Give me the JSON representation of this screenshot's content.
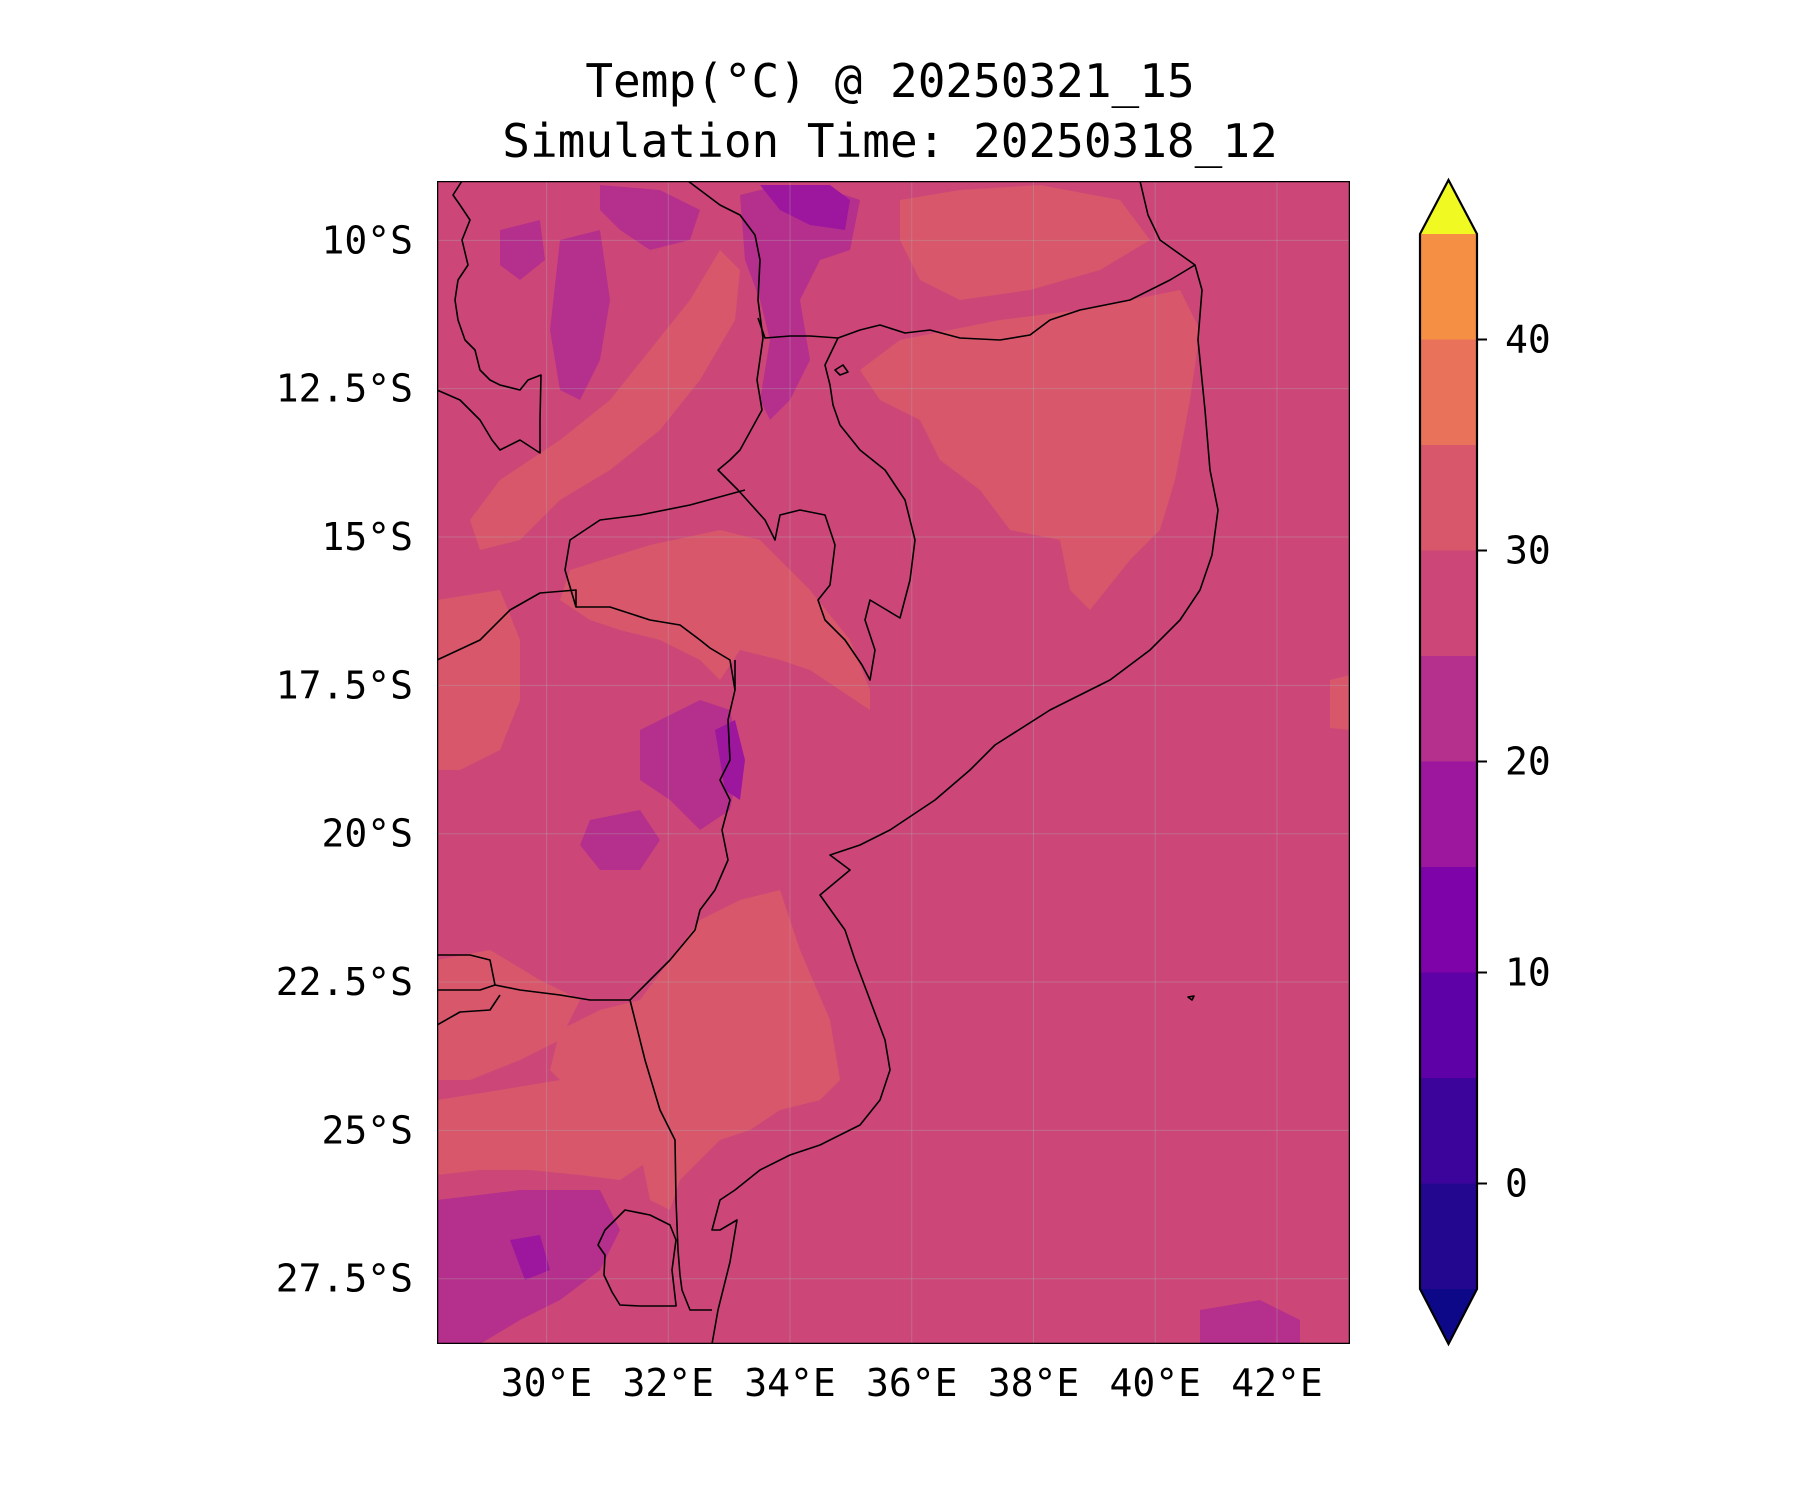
{
  "title": {
    "line1": "Temp(°C) @ 20250321_15",
    "line2": "Simulation Time: 20250318_12"
  },
  "map": {
    "extent_lon": [
      28.2,
      43.2
    ],
    "extent_lat": [
      -28.6,
      -9.0
    ],
    "background_band": "25-30",
    "grid": true
  },
  "axes": {
    "lat_ticks": [
      {
        "value": -10,
        "label": "10°S"
      },
      {
        "value": -12.5,
        "label": "12.5°S"
      },
      {
        "value": -15,
        "label": "15°S"
      },
      {
        "value": -17.5,
        "label": "17.5°S"
      },
      {
        "value": -20,
        "label": "20°S"
      },
      {
        "value": -22.5,
        "label": "22.5°S"
      },
      {
        "value": -25,
        "label": "25°S"
      },
      {
        "value": -27.5,
        "label": "27.5°S"
      }
    ],
    "lon_ticks": [
      {
        "value": 30,
        "label": "30°E"
      },
      {
        "value": 32,
        "label": "32°E"
      },
      {
        "value": 34,
        "label": "34°E"
      },
      {
        "value": 36,
        "label": "36°E"
      },
      {
        "value": 38,
        "label": "38°E"
      },
      {
        "value": 40,
        "label": "40°E"
      },
      {
        "value": 42,
        "label": "42°E"
      }
    ]
  },
  "colorbar": {
    "levels": [
      -5,
      0,
      5,
      10,
      15,
      20,
      25,
      30,
      35,
      40,
      45
    ],
    "colors": [
      "#24078f",
      "#3c049a",
      "#5e01a6",
      "#7e03a8",
      "#9c179e",
      "#b52f8c",
      "#cc4778",
      "#d8576b",
      "#e8735a",
      "#f48f44",
      "#fdb42f"
    ],
    "extend_low_color": "#0d0887",
    "extend_high_color": "#f0f921",
    "ticks": [
      {
        "value": 0,
        "label": "0"
      },
      {
        "value": 10,
        "label": "10"
      },
      {
        "value": 20,
        "label": "20"
      },
      {
        "value": 30,
        "label": "30"
      },
      {
        "value": 40,
        "label": "40"
      }
    ]
  }
}
